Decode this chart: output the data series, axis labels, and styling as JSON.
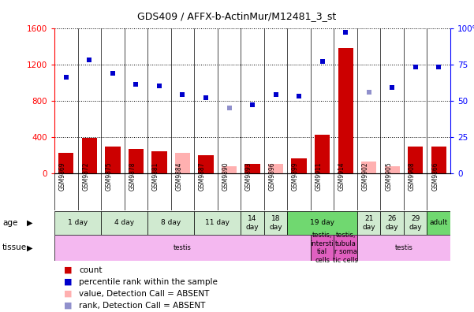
{
  "title": "GDS409 / AFFX-b-ActinMur/M12481_3_st",
  "samples": [
    "GSM9869",
    "GSM9872",
    "GSM9875",
    "GSM9878",
    "GSM9881",
    "GSM9884",
    "GSM9887",
    "GSM9890",
    "GSM9893",
    "GSM9896",
    "GSM9899",
    "GSM9911",
    "GSM9914",
    "GSM9902",
    "GSM9905",
    "GSM9908",
    "GSM9866"
  ],
  "count_values": [
    220,
    390,
    290,
    270,
    240,
    220,
    200,
    80,
    100,
    105,
    160,
    420,
    1380,
    130,
    80,
    290,
    290
  ],
  "count_absent": [
    false,
    false,
    false,
    false,
    false,
    true,
    false,
    true,
    false,
    true,
    false,
    false,
    false,
    true,
    true,
    false,
    false
  ],
  "rank_values": [
    66,
    78,
    69,
    61,
    60,
    54,
    52,
    45,
    47,
    54,
    53,
    77,
    97,
    56,
    59,
    73,
    73
  ],
  "rank_absent": [
    false,
    false,
    false,
    false,
    false,
    false,
    false,
    true,
    false,
    false,
    false,
    false,
    false,
    true,
    false,
    false,
    false
  ],
  "ylim_left": [
    0,
    1600
  ],
  "ylim_right": [
    0,
    100
  ],
  "yticks_left": [
    0,
    400,
    800,
    1200,
    1600
  ],
  "yticks_right": [
    0,
    25,
    50,
    75,
    100
  ],
  "age_groups": [
    {
      "label": "1 day",
      "start": 0,
      "end": 2,
      "color": "#d0ead0"
    },
    {
      "label": "4 day",
      "start": 2,
      "end": 4,
      "color": "#d0ead0"
    },
    {
      "label": "8 day",
      "start": 4,
      "end": 6,
      "color": "#d0ead0"
    },
    {
      "label": "11 day",
      "start": 6,
      "end": 8,
      "color": "#d0ead0"
    },
    {
      "label": "14\nday",
      "start": 8,
      "end": 9,
      "color": "#d0ead0"
    },
    {
      "label": "18\nday",
      "start": 9,
      "end": 10,
      "color": "#d0ead0"
    },
    {
      "label": "19 day",
      "start": 10,
      "end": 13,
      "color": "#70d870"
    },
    {
      "label": "21\nday",
      "start": 13,
      "end": 14,
      "color": "#d0ead0"
    },
    {
      "label": "26\nday",
      "start": 14,
      "end": 15,
      "color": "#d0ead0"
    },
    {
      "label": "29\nday",
      "start": 15,
      "end": 16,
      "color": "#d0ead0"
    },
    {
      "label": "adult",
      "start": 16,
      "end": 17,
      "color": "#70d870"
    }
  ],
  "tissue_groups": [
    {
      "label": "testis",
      "start": 0,
      "end": 11,
      "color": "#f4b8f0"
    },
    {
      "label": "testis,\nintersti\ntial\ncells",
      "start": 11,
      "end": 12,
      "color": "#e060c0"
    },
    {
      "label": "testis,\ntubula\nr soma\ntic cells",
      "start": 12,
      "end": 13,
      "color": "#e060c0"
    },
    {
      "label": "testis",
      "start": 13,
      "end": 17,
      "color": "#f4b8f0"
    }
  ],
  "bar_color_present": "#cc0000",
  "bar_color_absent": "#ffb0b0",
  "dot_color_present": "#0000cc",
  "dot_color_absent": "#9090cc",
  "bg_color": "#ffffff",
  "label_row_color": "#d0d0d0"
}
